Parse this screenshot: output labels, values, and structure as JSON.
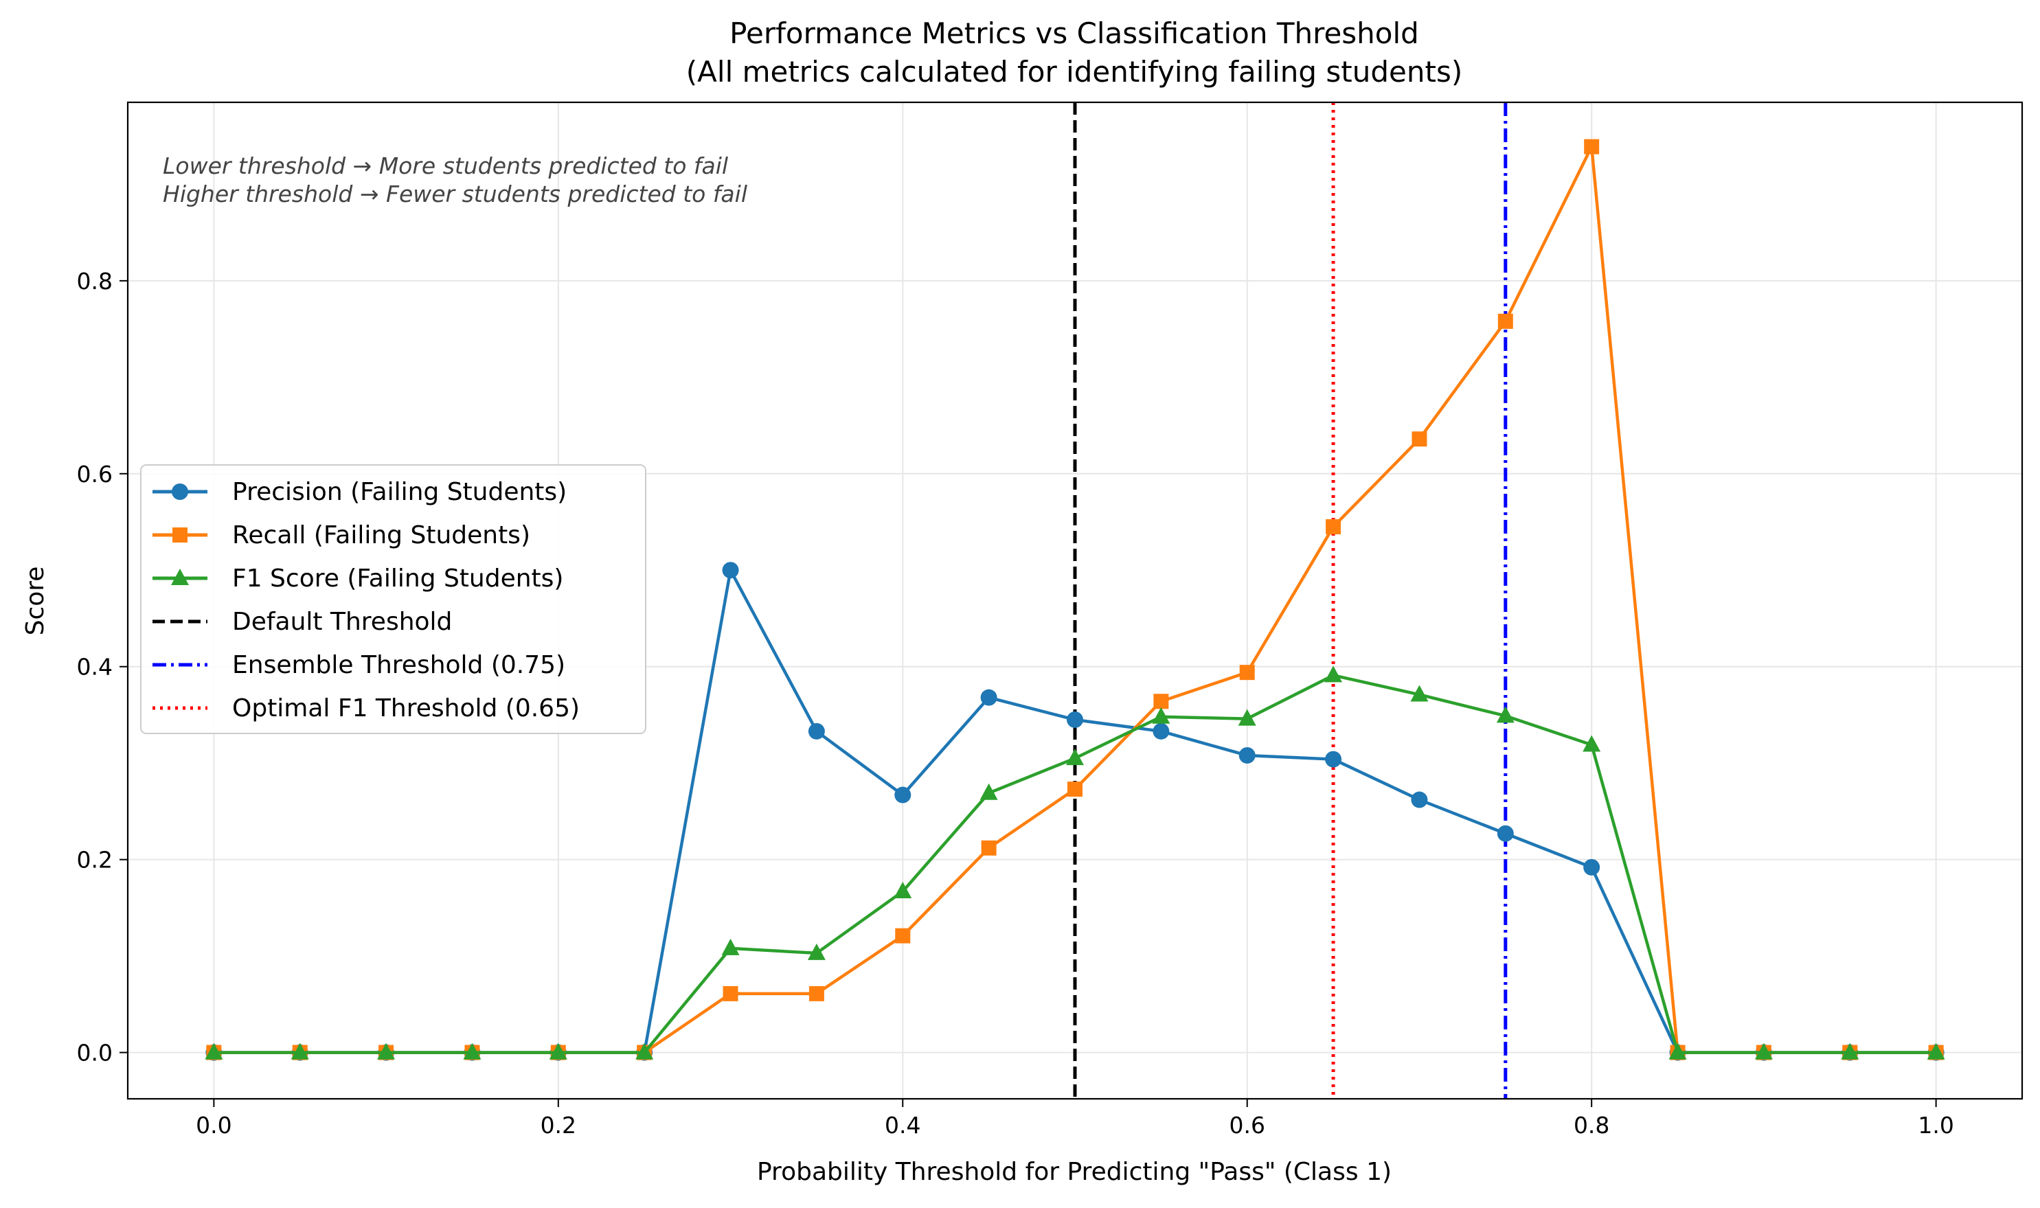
{
  "chart_data": {
    "type": "line",
    "title": "Performance Metrics vs Classification Threshold",
    "subtitle": "(All metrics calculated for identifying failing students)",
    "xlabel": "Probability Threshold for Predicting \"Pass\" (Class 1)",
    "ylabel": "Score",
    "xlim": [
      -0.05,
      1.05
    ],
    "ylim": [
      -0.048,
      0.985
    ],
    "xticks": [
      0.0,
      0.2,
      0.4,
      0.6,
      0.8,
      1.0
    ],
    "xtick_labels": [
      "0.0",
      "0.2",
      "0.4",
      "0.6",
      "0.8",
      "1.0"
    ],
    "yticks": [
      0.0,
      0.2,
      0.4,
      0.6,
      0.8
    ],
    "ytick_labels": [
      "0.0",
      "0.2",
      "0.4",
      "0.6",
      "0.8"
    ],
    "grid": true,
    "legend_position": "center-left",
    "annotation_lines": [
      "Lower threshold → More students predicted to fail",
      "Higher threshold → Fewer students predicted to fail"
    ],
    "x": [
      0.0,
      0.05,
      0.1,
      0.15,
      0.2,
      0.25,
      0.3,
      0.35,
      0.4,
      0.45,
      0.5,
      0.55,
      0.6,
      0.65,
      0.7,
      0.75,
      0.8,
      0.85,
      0.9,
      0.95,
      1.0
    ],
    "series": [
      {
        "name": "Precision (Failing Students)",
        "color": "#1f77b4",
        "marker": "circle",
        "values": [
          0,
          0,
          0,
          0,
          0,
          0,
          0.5,
          0.333,
          0.267,
          0.368,
          0.345,
          0.333,
          0.308,
          0.304,
          0.262,
          0.227,
          0.192,
          0,
          0,
          0,
          0
        ]
      },
      {
        "name": "Recall (Failing Students)",
        "color": "#ff7f0e",
        "marker": "square",
        "values": [
          0,
          0,
          0,
          0,
          0,
          0,
          0.061,
          0.061,
          0.121,
          0.212,
          0.273,
          0.364,
          0.394,
          0.545,
          0.636,
          0.758,
          0.939,
          0,
          0,
          0,
          0
        ]
      },
      {
        "name": "F1 Score (Failing Students)",
        "color": "#2ca02c",
        "marker": "triangle",
        "values": [
          0,
          0,
          0,
          0,
          0,
          0,
          0.108,
          0.103,
          0.167,
          0.269,
          0.305,
          0.348,
          0.346,
          0.391,
          0.371,
          0.349,
          0.319,
          0,
          0,
          0,
          0
        ]
      }
    ],
    "threshold_lines": [
      {
        "name": "Default Threshold",
        "x": 0.5,
        "color": "#000000",
        "style": "dashed"
      },
      {
        "name": "Ensemble Threshold (0.75)",
        "x": 0.75,
        "color": "#0000ff",
        "style": "dashdot"
      },
      {
        "name": "Optimal F1 Threshold (0.65)",
        "x": 0.65,
        "color": "#ff0000",
        "style": "dotted"
      }
    ],
    "legend_entries": [
      "Precision (Failing Students)",
      "Recall (Failing Students)",
      "F1 Score (Failing Students)",
      "Default Threshold",
      "Ensemble Threshold (0.75)",
      "Optimal F1 Threshold (0.65)"
    ]
  }
}
